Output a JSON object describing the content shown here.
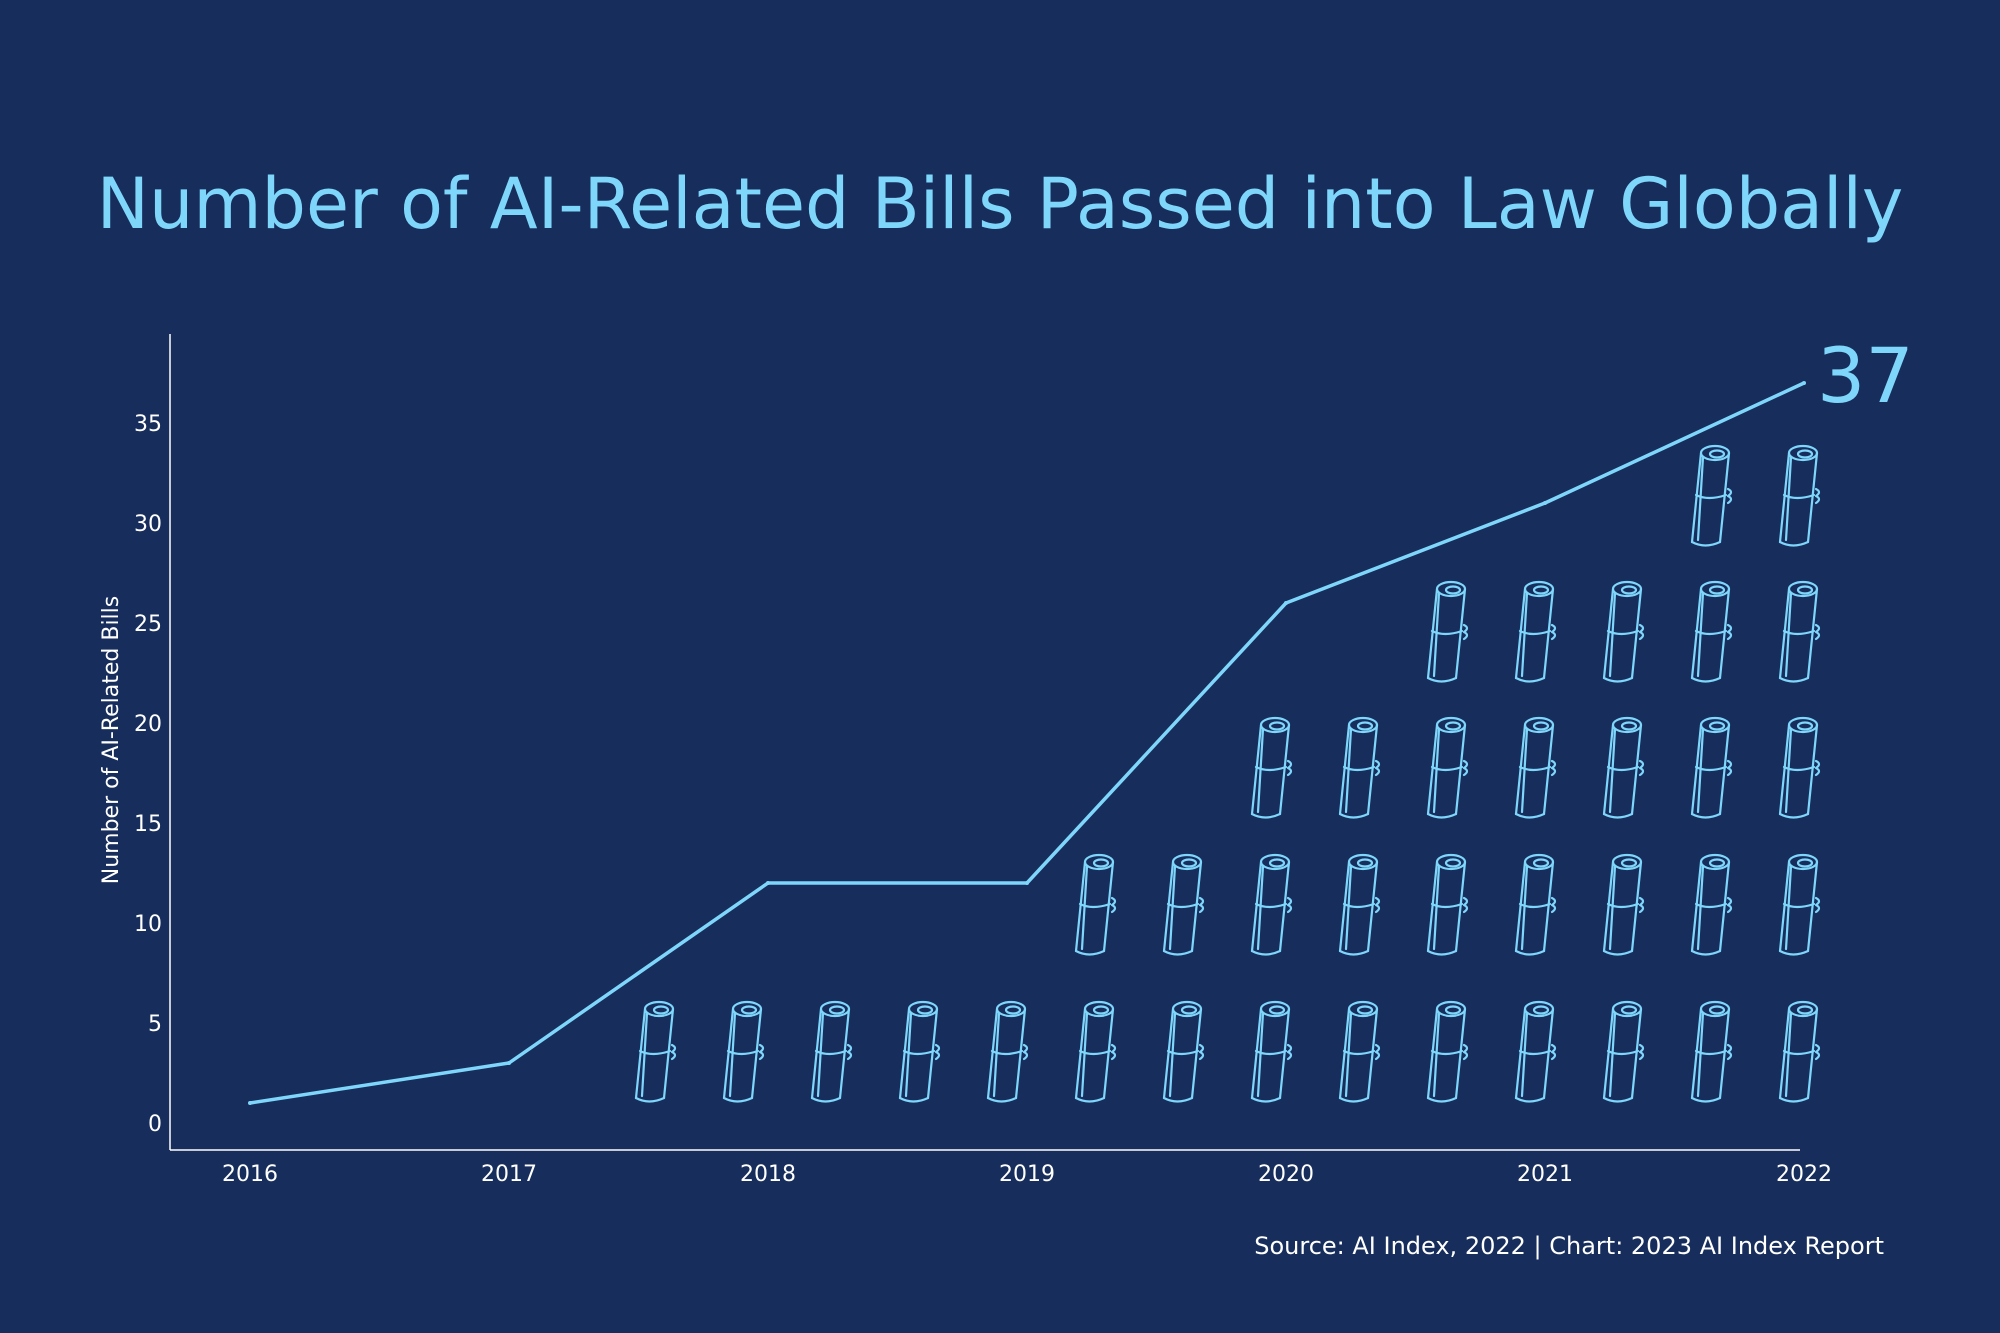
{
  "chart_data": {
    "type": "line",
    "title": "Number of AI-Related Bills Passed into Law Globally",
    "ylabel": "Number of AI-Related Bills",
    "xlabel": "",
    "x": [
      "2016",
      "2017",
      "2018",
      "2019",
      "2020",
      "2021",
      "2022"
    ],
    "series": [
      {
        "values": [
          1,
          3,
          12,
          12,
          26,
          31,
          37
        ]
      }
    ],
    "ylim": [
      0,
      38
    ],
    "yticks": [
      0,
      5,
      10,
      15,
      20,
      25,
      30,
      35
    ],
    "end_label": "37",
    "grid": false,
    "decoration": "rows of rolled-scroll icons beneath the line",
    "colors": {
      "background": "#172d5c",
      "accent": "#7fd6fb",
      "text": "#ffffff"
    }
  },
  "source": "Source: AI Index, 2022 | Chart: 2023 AI Index Report"
}
